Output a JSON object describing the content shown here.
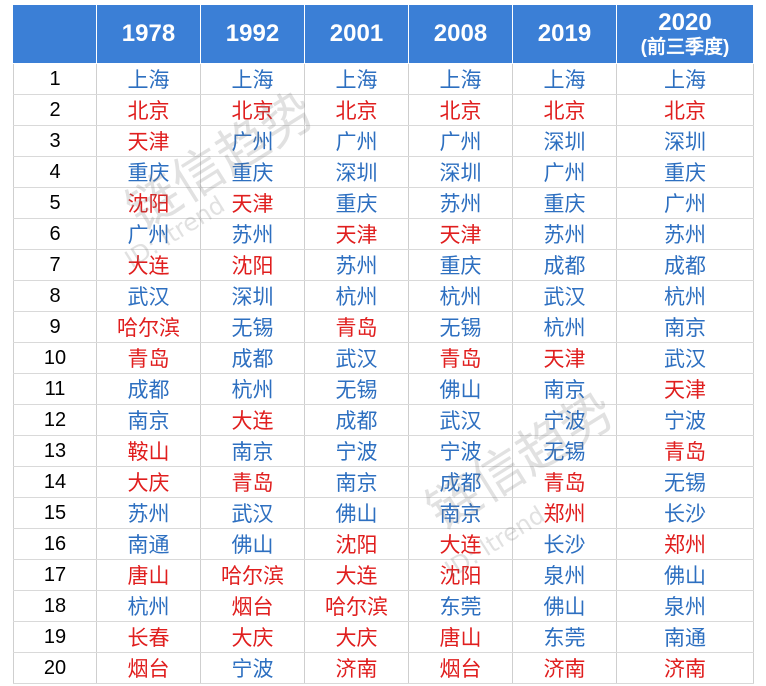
{
  "header": {
    "years": [
      "1978",
      "1992",
      "2001",
      "2008",
      "2019",
      "2020"
    ],
    "last_sub": "(前三季度)"
  },
  "colors": {
    "header_bg": "#3b7fd6",
    "blue_text": "#2d6fc0",
    "red_text": "#e01e1e"
  },
  "rows": [
    {
      "rank": "1",
      "cells": [
        [
          "上海",
          "blue"
        ],
        [
          "上海",
          "blue"
        ],
        [
          "上海",
          "blue"
        ],
        [
          "上海",
          "blue"
        ],
        [
          "上海",
          "blue"
        ],
        [
          "上海",
          "blue"
        ]
      ]
    },
    {
      "rank": "2",
      "cells": [
        [
          "北京",
          "red"
        ],
        [
          "北京",
          "red"
        ],
        [
          "北京",
          "red"
        ],
        [
          "北京",
          "red"
        ],
        [
          "北京",
          "red"
        ],
        [
          "北京",
          "red"
        ]
      ]
    },
    {
      "rank": "3",
      "cells": [
        [
          "天津",
          "red"
        ],
        [
          "广州",
          "blue"
        ],
        [
          "广州",
          "blue"
        ],
        [
          "广州",
          "blue"
        ],
        [
          "深圳",
          "blue"
        ],
        [
          "深圳",
          "blue"
        ]
      ]
    },
    {
      "rank": "4",
      "cells": [
        [
          "重庆",
          "blue"
        ],
        [
          "重庆",
          "blue"
        ],
        [
          "深圳",
          "blue"
        ],
        [
          "深圳",
          "blue"
        ],
        [
          "广州",
          "blue"
        ],
        [
          "重庆",
          "blue"
        ]
      ]
    },
    {
      "rank": "5",
      "cells": [
        [
          "沈阳",
          "red"
        ],
        [
          "天津",
          "red"
        ],
        [
          "重庆",
          "blue"
        ],
        [
          "苏州",
          "blue"
        ],
        [
          "重庆",
          "blue"
        ],
        [
          "广州",
          "blue"
        ]
      ]
    },
    {
      "rank": "6",
      "cells": [
        [
          "广州",
          "blue"
        ],
        [
          "苏州",
          "blue"
        ],
        [
          "天津",
          "red"
        ],
        [
          "天津",
          "red"
        ],
        [
          "苏州",
          "blue"
        ],
        [
          "苏州",
          "blue"
        ]
      ]
    },
    {
      "rank": "7",
      "cells": [
        [
          "大连",
          "red"
        ],
        [
          "沈阳",
          "red"
        ],
        [
          "苏州",
          "blue"
        ],
        [
          "重庆",
          "blue"
        ],
        [
          "成都",
          "blue"
        ],
        [
          "成都",
          "blue"
        ]
      ]
    },
    {
      "rank": "8",
      "cells": [
        [
          "武汉",
          "blue"
        ],
        [
          "深圳",
          "blue"
        ],
        [
          "杭州",
          "blue"
        ],
        [
          "杭州",
          "blue"
        ],
        [
          "武汉",
          "blue"
        ],
        [
          "杭州",
          "blue"
        ]
      ]
    },
    {
      "rank": "9",
      "cells": [
        [
          "哈尔滨",
          "red"
        ],
        [
          "无锡",
          "blue"
        ],
        [
          "青岛",
          "red"
        ],
        [
          "无锡",
          "blue"
        ],
        [
          "杭州",
          "blue"
        ],
        [
          "南京",
          "blue"
        ]
      ]
    },
    {
      "rank": "10",
      "cells": [
        [
          "青岛",
          "red"
        ],
        [
          "成都",
          "blue"
        ],
        [
          "武汉",
          "blue"
        ],
        [
          "青岛",
          "red"
        ],
        [
          "天津",
          "red"
        ],
        [
          "武汉",
          "blue"
        ]
      ]
    },
    {
      "rank": "11",
      "cells": [
        [
          "成都",
          "blue"
        ],
        [
          "杭州",
          "blue"
        ],
        [
          "无锡",
          "blue"
        ],
        [
          "佛山",
          "blue"
        ],
        [
          "南京",
          "blue"
        ],
        [
          "天津",
          "red"
        ]
      ]
    },
    {
      "rank": "12",
      "cells": [
        [
          "南京",
          "blue"
        ],
        [
          "大连",
          "red"
        ],
        [
          "成都",
          "blue"
        ],
        [
          "武汉",
          "blue"
        ],
        [
          "宁波",
          "blue"
        ],
        [
          "宁波",
          "blue"
        ]
      ]
    },
    {
      "rank": "13",
      "cells": [
        [
          "鞍山",
          "red"
        ],
        [
          "南京",
          "blue"
        ],
        [
          "宁波",
          "blue"
        ],
        [
          "宁波",
          "blue"
        ],
        [
          "无锡",
          "blue"
        ],
        [
          "青岛",
          "red"
        ]
      ]
    },
    {
      "rank": "14",
      "cells": [
        [
          "大庆",
          "red"
        ],
        [
          "青岛",
          "red"
        ],
        [
          "南京",
          "blue"
        ],
        [
          "成都",
          "blue"
        ],
        [
          "青岛",
          "red"
        ],
        [
          "无锡",
          "blue"
        ]
      ]
    },
    {
      "rank": "15",
      "cells": [
        [
          "苏州",
          "blue"
        ],
        [
          "武汉",
          "blue"
        ],
        [
          "佛山",
          "blue"
        ],
        [
          "南京",
          "blue"
        ],
        [
          "郑州",
          "red"
        ],
        [
          "长沙",
          "blue"
        ]
      ]
    },
    {
      "rank": "16",
      "cells": [
        [
          "南通",
          "blue"
        ],
        [
          "佛山",
          "blue"
        ],
        [
          "沈阳",
          "red"
        ],
        [
          "大连",
          "red"
        ],
        [
          "长沙",
          "blue"
        ],
        [
          "郑州",
          "red"
        ]
      ]
    },
    {
      "rank": "17",
      "cells": [
        [
          "唐山",
          "red"
        ],
        [
          "哈尔滨",
          "red"
        ],
        [
          "大连",
          "red"
        ],
        [
          "沈阳",
          "red"
        ],
        [
          "泉州",
          "blue"
        ],
        [
          "佛山",
          "blue"
        ]
      ]
    },
    {
      "rank": "18",
      "cells": [
        [
          "杭州",
          "blue"
        ],
        [
          "烟台",
          "red"
        ],
        [
          "哈尔滨",
          "red"
        ],
        [
          "东莞",
          "blue"
        ],
        [
          "佛山",
          "blue"
        ],
        [
          "泉州",
          "blue"
        ]
      ]
    },
    {
      "rank": "19",
      "cells": [
        [
          "长春",
          "red"
        ],
        [
          "大庆",
          "red"
        ],
        [
          "大庆",
          "red"
        ],
        [
          "唐山",
          "red"
        ],
        [
          "东莞",
          "blue"
        ],
        [
          "南通",
          "blue"
        ]
      ]
    },
    {
      "rank": "20",
      "cells": [
        [
          "烟台",
          "red"
        ],
        [
          "宁波",
          "blue"
        ],
        [
          "济南",
          "red"
        ],
        [
          "烟台",
          "red"
        ],
        [
          "济南",
          "red"
        ],
        [
          "济南",
          "red"
        ]
      ]
    }
  ],
  "watermark": {
    "main": "链信趋势",
    "sub": "ID: ltrend"
  }
}
